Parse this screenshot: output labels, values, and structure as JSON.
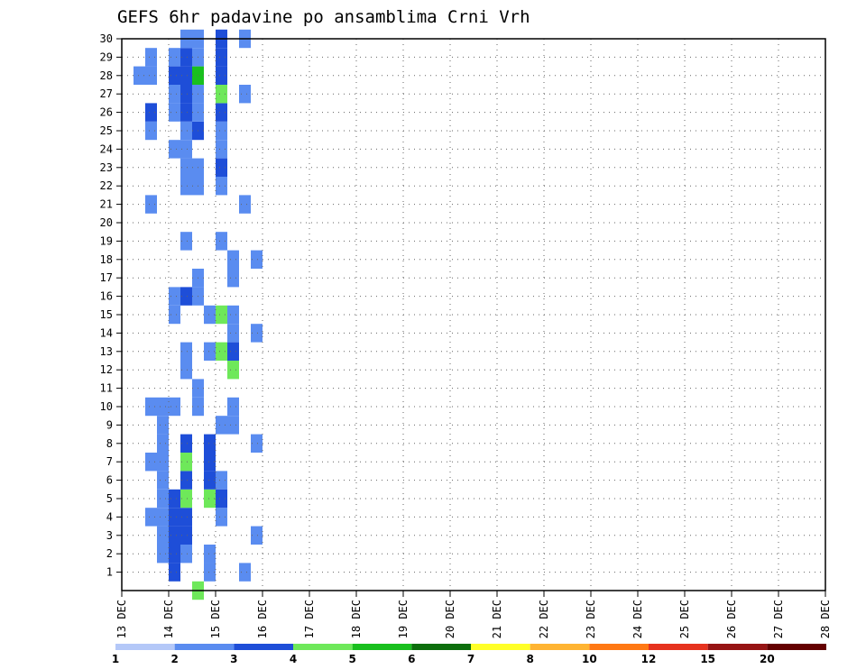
{
  "chart_data": {
    "type": "heatmap",
    "title": "GEFS 6hr padavine po ansamblima Crni Vrh",
    "xlabel": "",
    "ylabel": "",
    "x_tick_labels": [
      "13 DEC",
      "14 DEC",
      "15 DEC",
      "16 DEC",
      "17 DEC",
      "18 DEC",
      "19 DEC",
      "20 DEC",
      "21 DEC",
      "22 DEC",
      "23 DEC",
      "24 DEC",
      "25 DEC",
      "26 DEC",
      "27 DEC",
      "28 DEC"
    ],
    "x_range_hours": [
      0,
      360
    ],
    "x_step_hours": 6,
    "y_tick_labels": [
      "1",
      "2",
      "3",
      "4",
      "5",
      "6",
      "7",
      "8",
      "9",
      "10",
      "11",
      "12",
      "13",
      "14",
      "15",
      "16",
      "17",
      "18",
      "19",
      "20",
      "21",
      "22",
      "23",
      "24",
      "25",
      "26",
      "27",
      "28",
      "29",
      "30"
    ],
    "y_range": [
      0,
      30
    ],
    "grid": true,
    "legend": {
      "placement": "bottom",
      "colors": [
        "#b4c8f8",
        "#5a8cf0",
        "#1e4ed8",
        "#6ee85a",
        "#19c01e",
        "#0c6e0c",
        "#ffff28",
        "#ffb432",
        "#ff7814",
        "#e6321e",
        "#961414",
        "#640000"
      ],
      "labels": [
        "1",
        "2",
        "3",
        "4",
        "5",
        "6",
        "7",
        "8",
        "10",
        "12",
        "15",
        "20"
      ]
    },
    "cells": [
      [
        36,
        0,
        3
      ],
      [
        42,
        1,
        1
      ],
      [
        42,
        2,
        1
      ],
      [
        42,
        5,
        3
      ],
      [
        42,
        6,
        2
      ],
      [
        42,
        7,
        2
      ],
      [
        42,
        8,
        2
      ],
      [
        36,
        16,
        1
      ],
      [
        36,
        17,
        1
      ],
      [
        36,
        10,
        1
      ],
      [
        36,
        11,
        1
      ],
      [
        42,
        2,
        1
      ],
      [
        42,
        13,
        1
      ],
      [
        42,
        15,
        1
      ],
      [
        48,
        4,
        1
      ],
      [
        48,
        6,
        1
      ],
      [
        48,
        5,
        2
      ],
      [
        48,
        13,
        3
      ],
      [
        48,
        15,
        3
      ],
      [
        6,
        28,
        1
      ],
      [
        18,
        2,
        1
      ],
      [
        18,
        3,
        1
      ],
      [
        18,
        4,
        1
      ],
      [
        18,
        5,
        1
      ],
      [
        18,
        6,
        1
      ],
      [
        18,
        7,
        1
      ],
      [
        18,
        8,
        1
      ],
      [
        18,
        9,
        1
      ],
      [
        18,
        10,
        1
      ],
      [
        30,
        2,
        1
      ],
      [
        30,
        3,
        2
      ],
      [
        30,
        4,
        2
      ],
      [
        30,
        5,
        3
      ],
      [
        30,
        6,
        2
      ],
      [
        30,
        7,
        3
      ],
      [
        30,
        8,
        2
      ],
      [
        30,
        12,
        1
      ],
      [
        30,
        13,
        1
      ],
      [
        30,
        16,
        2
      ],
      [
        30,
        19,
        1
      ],
      [
        30,
        22,
        1
      ],
      [
        30,
        23,
        1
      ],
      [
        30,
        24,
        1
      ],
      [
        30,
        25,
        1
      ],
      [
        30,
        26,
        2
      ],
      [
        30,
        27,
        2
      ],
      [
        30,
        28,
        2
      ],
      [
        30,
        29,
        2
      ],
      [
        30,
        30,
        1
      ],
      [
        36,
        22,
        1
      ],
      [
        36,
        23,
        1
      ],
      [
        36,
        25,
        2
      ],
      [
        36,
        26,
        1
      ],
      [
        36,
        27,
        1
      ],
      [
        36,
        28,
        4
      ],
      [
        36,
        29,
        1
      ],
      [
        36,
        30,
        1
      ],
      [
        24,
        5,
        2
      ],
      [
        24,
        4,
        2
      ],
      [
        24,
        3,
        2
      ],
      [
        24,
        2,
        2
      ],
      [
        24,
        1,
        2
      ],
      [
        24,
        10,
        1
      ],
      [
        24,
        16,
        1
      ],
      [
        24,
        15,
        1
      ],
      [
        24,
        24,
        1
      ],
      [
        24,
        26,
        1
      ],
      [
        24,
        27,
        1
      ],
      [
        24,
        28,
        2
      ],
      [
        24,
        29,
        1
      ],
      [
        12,
        7,
        1
      ],
      [
        12,
        21,
        1
      ],
      [
        12,
        28,
        1
      ],
      [
        12,
        29,
        1
      ],
      [
        12,
        4,
        1
      ],
      [
        12,
        10,
        1
      ],
      [
        12,
        25,
        1
      ],
      [
        12,
        26,
        2
      ],
      [
        66,
        8,
        1
      ],
      [
        66,
        3,
        1
      ],
      [
        66,
        14,
        1
      ],
      [
        66,
        18,
        1
      ],
      [
        60,
        1,
        1
      ],
      [
        60,
        21,
        1
      ],
      [
        60,
        27,
        1
      ],
      [
        60,
        30,
        1
      ],
      [
        48,
        9,
        1
      ],
      [
        48,
        19,
        1
      ],
      [
        48,
        22,
        1
      ],
      [
        48,
        23,
        2
      ],
      [
        48,
        24,
        1
      ],
      [
        48,
        25,
        1
      ],
      [
        48,
        26,
        2
      ],
      [
        48,
        27,
        3
      ],
      [
        48,
        28,
        2
      ],
      [
        48,
        29,
        2
      ],
      [
        48,
        30,
        2
      ],
      [
        54,
        9,
        1
      ],
      [
        54,
        10,
        1
      ],
      [
        54,
        12,
        3
      ],
      [
        54,
        13,
        2
      ],
      [
        54,
        14,
        1
      ],
      [
        54,
        15,
        1
      ],
      [
        54,
        17,
        1
      ],
      [
        54,
        18,
        1
      ]
    ]
  }
}
